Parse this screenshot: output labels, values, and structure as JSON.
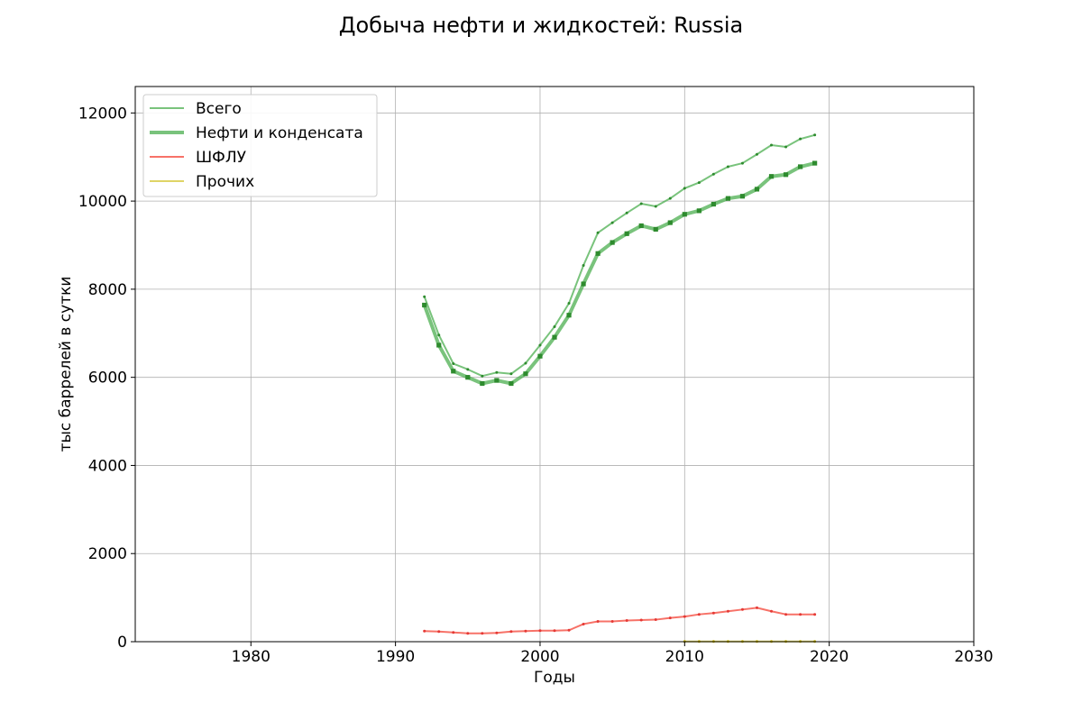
{
  "chart_data": {
    "type": "line",
    "title": "Добыча нефти и жидкостей: Russia",
    "xlabel": "Годы",
    "ylabel": "тыс баррелей в сутки",
    "xlim": [
      1972,
      2030
    ],
    "ylim": [
      0,
      12600
    ],
    "xticks": [
      "1980",
      "1990",
      "2000",
      "2010",
      "2020",
      "2030"
    ],
    "yticks": [
      "0",
      "2000",
      "4000",
      "6000",
      "8000",
      "10000",
      "12000"
    ],
    "grid": true,
    "legend_position": "top-left",
    "x": [
      1992,
      1993,
      1994,
      1995,
      1996,
      1997,
      1998,
      1999,
      2000,
      2001,
      2002,
      2003,
      2004,
      2005,
      2006,
      2007,
      2008,
      2009,
      2010,
      2011,
      2012,
      2013,
      2014,
      2015,
      2016,
      2017,
      2018,
      2019
    ],
    "series": [
      {
        "name": "Всего",
        "color": "#4caf50",
        "values": [
          7830,
          6960,
          6310,
          6180,
          6030,
          6110,
          6080,
          6320,
          6730,
          7150,
          7680,
          8540,
          9280,
          9510,
          9730,
          9940,
          9880,
          10060,
          10290,
          10420,
          10610,
          10780,
          10860,
          11060,
          11270,
          11230,
          11410,
          11500
        ]
      },
      {
        "name": "Нефти и конденсата",
        "color": "#4caf50",
        "values": [
          7640,
          6730,
          6140,
          6000,
          5860,
          5930,
          5860,
          6080,
          6480,
          6910,
          7410,
          8120,
          8810,
          9060,
          9260,
          9440,
          9360,
          9510,
          9700,
          9780,
          9930,
          10060,
          10110,
          10270,
          10560,
          10600,
          10780,
          10860
        ]
      },
      {
        "name": "ШФЛУ",
        "color": "#f44336",
        "values": [
          240,
          230,
          210,
          190,
          190,
          200,
          230,
          240,
          250,
          250,
          260,
          400,
          460,
          460,
          480,
          490,
          500,
          540,
          570,
          620,
          650,
          690,
          730,
          770,
          690,
          620,
          620,
          620
        ]
      },
      {
        "name": "Прочих",
        "x": [
          2010,
          2011,
          2012,
          2013,
          2014,
          2015,
          2016,
          2017,
          2018,
          2019
        ],
        "color": "#d4c533",
        "values": [
          5,
          5,
          5,
          5,
          5,
          5,
          5,
          5,
          5,
          5
        ]
      }
    ]
  }
}
